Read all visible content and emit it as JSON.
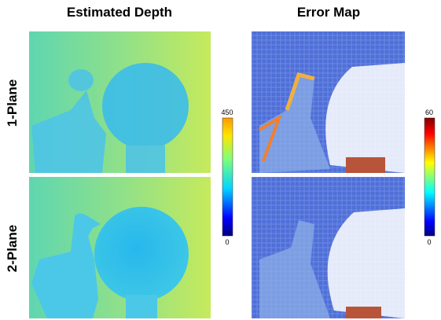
{
  "columns": [
    "Estimated Depth",
    "Error Map"
  ],
  "rows": [
    "1-Plane",
    "2-Plane"
  ],
  "colorbars": [
    {
      "max": 450,
      "min": 0
    },
    {
      "max": 60,
      "min": 0
    }
  ]
}
